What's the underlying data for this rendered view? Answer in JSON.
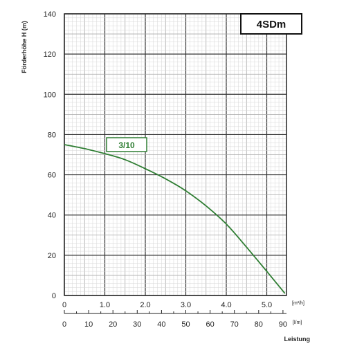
{
  "chart_data": {
    "type": "line",
    "title": "",
    "model_label": "4SDm",
    "ylabel": "Förderhöhe  H (m)",
    "xlabel": "Leistung",
    "x_unit_top": "[m³/h]",
    "x_unit_bottom": "[l/m]",
    "ylim": [
      0,
      140
    ],
    "xlim": [
      0,
      6
    ],
    "xlim_secondary": [
      0,
      100
    ],
    "y_ticks": [
      "0",
      "20",
      "40",
      "60",
      "80",
      "100",
      "120",
      "140"
    ],
    "x_ticks_top": [
      "0",
      "1.0",
      "2.0",
      "3.0",
      "4.0",
      "5.0"
    ],
    "x_ticks_bottom": [
      "0",
      "10",
      "20",
      "30",
      "40",
      "50",
      "60",
      "70",
      "80",
      "90"
    ],
    "grid": true,
    "colors": {
      "curve": "#2e7d32",
      "grid_fine": "#d6d6d6",
      "grid_mid": "#a8a8a8",
      "grid_major": "#333333"
    },
    "series": [
      {
        "name": "3/10",
        "x": [
          0,
          0.5,
          1.0,
          1.5,
          2.0,
          2.5,
          3.0,
          3.5,
          4.0,
          4.5,
          5.0,
          5.45
        ],
        "y": [
          75,
          73,
          70.5,
          67.5,
          63,
          58,
          52,
          44.5,
          35.5,
          24,
          12,
          1
        ]
      }
    ]
  }
}
